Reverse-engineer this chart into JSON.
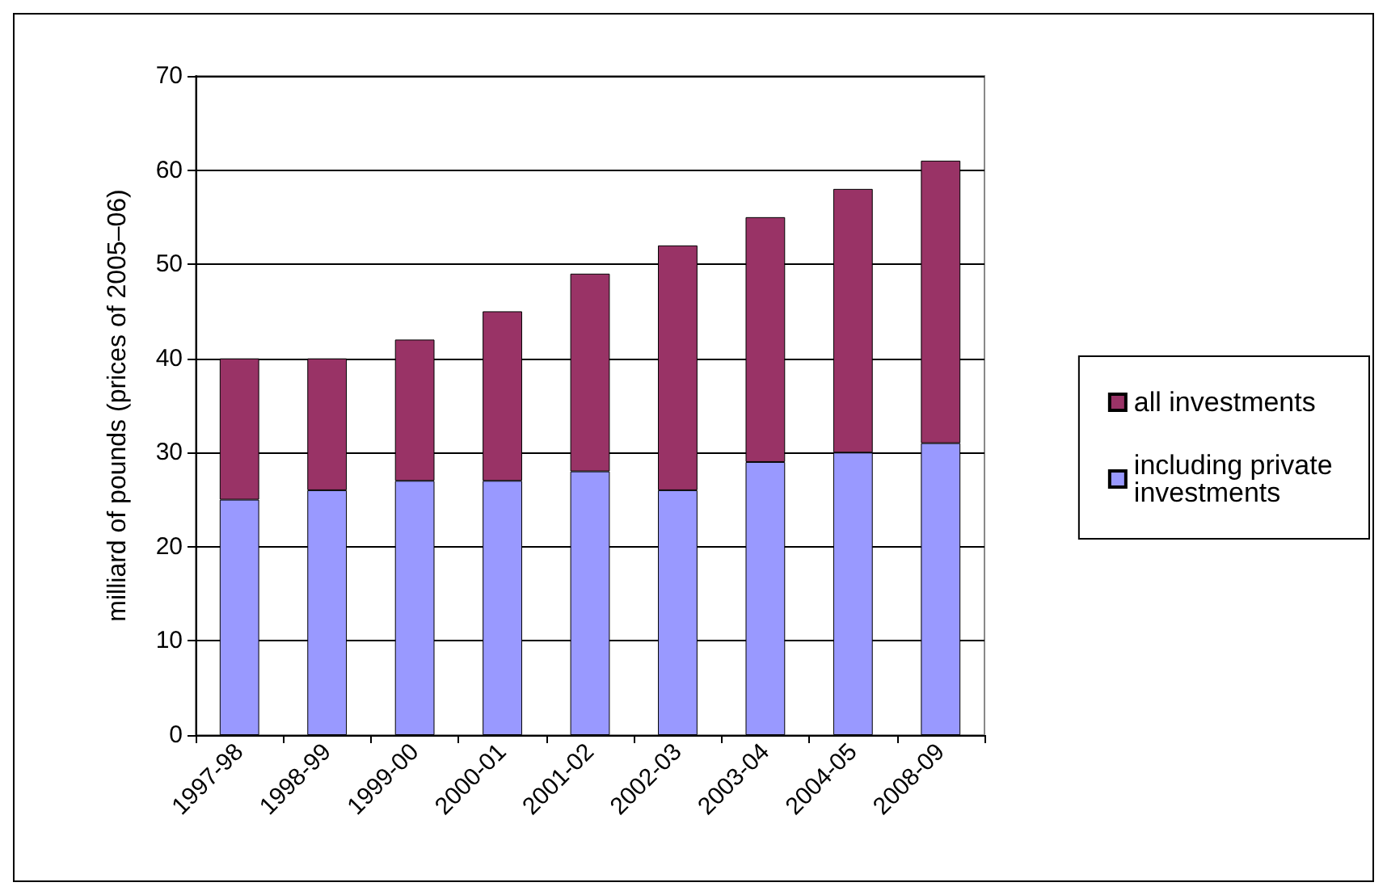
{
  "chart_data": {
    "type": "bar",
    "stacked": true,
    "ylabel": "milliard of pounds (prices of 2005–06)",
    "categories": [
      "1997-98",
      "1998-99",
      "1999-00",
      "2000-01",
      "2001-02",
      "2002-03",
      "2003-04",
      "2004-05",
      "2008-09"
    ],
    "series": [
      {
        "name": "including private investments",
        "color": "#9999ff",
        "values": [
          25,
          26,
          27,
          27,
          28,
          26,
          29,
          30,
          31
        ]
      },
      {
        "name": "all investments",
        "color": "#993366",
        "values": [
          15,
          14,
          15,
          18,
          21,
          26,
          26,
          28,
          30
        ]
      }
    ],
    "ylim": [
      0,
      70
    ],
    "yticks": [
      0,
      10,
      20,
      30,
      40,
      50,
      60,
      70
    ],
    "grid": "y",
    "legend": "right"
  }
}
